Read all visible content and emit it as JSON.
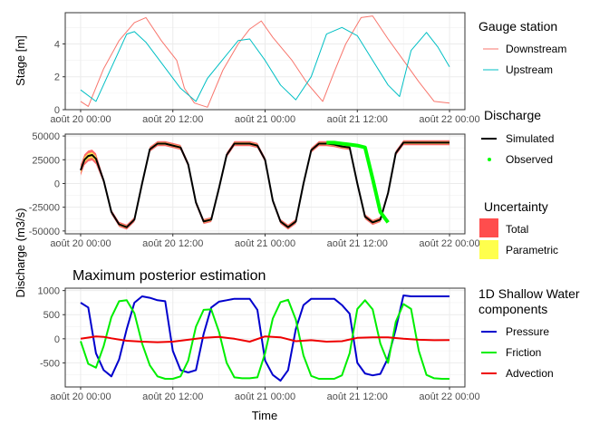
{
  "chart_data": [
    {
      "type": "line",
      "title": "",
      "xlabel": "",
      "ylabel": "Stage [m]",
      "x_ticks": [
        "août 20 00:00",
        "août 20 12:00",
        "août 21 00:00",
        "août 21 12:00",
        "août 22 00:00"
      ],
      "x_unit": "hours since août 20 00:00",
      "xlim": [
        -2,
        50
      ],
      "ylim": [
        0,
        5.9
      ],
      "y_ticks": [
        0,
        2,
        4
      ],
      "grid": true,
      "series": [
        {
          "name": "Downstream",
          "color": "#F8766D",
          "x": [
            0,
            1,
            3,
            5,
            7,
            8.5,
            10.5,
            12.5,
            13.5,
            14.8,
            16.5,
            18.5,
            20.5,
            22,
            23.5,
            25,
            27.5,
            29.5,
            31.5,
            33,
            34.5,
            36.5,
            38,
            40,
            42,
            44,
            46,
            48
          ],
          "y": [
            0.5,
            0.2,
            2.5,
            4.2,
            5.3,
            5.6,
            4.2,
            3.0,
            1.3,
            0.4,
            0.15,
            2.4,
            4.0,
            4.9,
            5.4,
            4.4,
            3.0,
            1.6,
            0.5,
            2.3,
            4.0,
            5.6,
            5.7,
            4.3,
            3.0,
            1.7,
            0.5,
            0.4
          ]
        },
        {
          "name": "Upstream",
          "color": "#00BFC4",
          "x": [
            0,
            2,
            6,
            7,
            8.5,
            13,
            15,
            16.5,
            20.5,
            22,
            24,
            26,
            28,
            30,
            32,
            34,
            36,
            38,
            40,
            41.5,
            43,
            45,
            46.5,
            48
          ],
          "y": [
            1.2,
            0.5,
            4.6,
            4.75,
            4.1,
            1.3,
            0.5,
            1.9,
            4.2,
            4.3,
            3.0,
            1.5,
            0.6,
            2.0,
            4.6,
            5.0,
            4.5,
            3.0,
            1.5,
            0.8,
            3.6,
            4.7,
            3.8,
            2.6
          ]
        }
      ]
    },
    {
      "type": "line",
      "title": "",
      "xlabel": "",
      "ylabel": "Discharge (m3/s)",
      "x_ticks": [
        "août 20 00:00",
        "août 20 12:00",
        "août 21 00:00",
        "août 21 12:00",
        "août 22 00:00"
      ],
      "x_unit": "hours since août 20 00:00",
      "xlim": [
        -2,
        50
      ],
      "ylim": [
        -53000,
        52000
      ],
      "y_ticks": [
        50000,
        25000,
        0,
        -25000,
        -50000
      ],
      "grid": true,
      "series": [
        {
          "name": "Simulated",
          "color": "#000000",
          "x": [
            0,
            0.5,
            1,
            1.5,
            2,
            3,
            4,
            5,
            6,
            7,
            8,
            9,
            10,
            11,
            12,
            13,
            14,
            15,
            16,
            17,
            18,
            19,
            20,
            21,
            22,
            23,
            24,
            25,
            26,
            27,
            28,
            29,
            30,
            31,
            32,
            33,
            34,
            35,
            36,
            37,
            38,
            39,
            40,
            41,
            42,
            43,
            44,
            45,
            46,
            47,
            48
          ],
          "y": [
            14000,
            25000,
            29000,
            30000,
            26000,
            3000,
            -30000,
            -43000,
            -46000,
            -38000,
            0,
            36000,
            42000,
            42000,
            40000,
            38000,
            20000,
            -20000,
            -40000,
            -38000,
            -5000,
            30000,
            42000,
            42000,
            42000,
            40000,
            25000,
            -18000,
            -40000,
            -46000,
            -40000,
            0,
            35000,
            42000,
            42000,
            41000,
            39000,
            38000,
            0,
            -35000,
            -41000,
            -38000,
            -10000,
            32000,
            43000,
            43000,
            43000,
            43000,
            43000,
            43000,
            43000
          ]
        },
        {
          "name": "Observed",
          "color": "#00FF00",
          "x": [
            32,
            33,
            34,
            35,
            36,
            37,
            38,
            39,
            40
          ],
          "y": [
            43000,
            43000,
            42000,
            41000,
            40000,
            38000,
            5000,
            -30000,
            -41000
          ]
        }
      ],
      "uncertainty": [
        {
          "name": "Total",
          "color": "#FF4D4D"
        },
        {
          "name": "Parametric",
          "color": "#FFFF4D"
        }
      ]
    },
    {
      "type": "line",
      "title": "Maximum posterior estimation",
      "xlabel": "Time",
      "ylabel": "",
      "x_ticks": [
        "août 20 00:00",
        "août 20 12:00",
        "août 21 00:00",
        "août 21 12:00",
        "août 22 00:00"
      ],
      "x_unit": "hours since août 20 00:00",
      "xlim": [
        -2,
        50
      ],
      "ylim": [
        -1000,
        1050
      ],
      "y_ticks": [
        1000,
        500,
        0,
        -500
      ],
      "grid": true,
      "series": [
        {
          "name": "Pressure",
          "color": "#0000CD",
          "x": [
            0,
            1,
            2,
            3,
            4,
            5,
            6,
            7,
            8,
            9,
            10,
            11,
            12,
            13,
            14,
            15,
            16,
            17,
            18,
            19,
            20,
            21,
            22,
            23,
            24,
            25,
            26,
            27,
            28,
            29,
            30,
            31,
            32,
            33,
            34,
            35,
            36,
            37,
            38,
            39,
            40,
            41,
            42,
            43,
            44,
            45,
            46,
            47,
            48
          ],
          "y": [
            750,
            650,
            -300,
            -650,
            -780,
            -430,
            200,
            750,
            880,
            850,
            800,
            780,
            -250,
            -650,
            -700,
            -650,
            100,
            650,
            770,
            800,
            830,
            830,
            830,
            600,
            -450,
            -750,
            -870,
            -650,
            200,
            700,
            830,
            830,
            830,
            830,
            700,
            520,
            -500,
            -720,
            -760,
            -730,
            -400,
            200,
            900,
            880,
            880,
            880,
            880,
            880,
            880
          ]
        },
        {
          "name": "Friction",
          "color": "#00EE00",
          "x": [
            0,
            1,
            2,
            3,
            4,
            5,
            6,
            7,
            8,
            9,
            10,
            11,
            12,
            13,
            14,
            15,
            16,
            17,
            18,
            19,
            20,
            21,
            22,
            23,
            24,
            25,
            26,
            27,
            28,
            29,
            30,
            31,
            32,
            33,
            34,
            35,
            36,
            37,
            38,
            39,
            40,
            41,
            42,
            43,
            44,
            45,
            46,
            47,
            48
          ],
          "y": [
            -50,
            -520,
            -600,
            -150,
            450,
            780,
            800,
            530,
            -100,
            -550,
            -780,
            -830,
            -830,
            -780,
            -450,
            250,
            600,
            610,
            150,
            -500,
            -800,
            -820,
            -820,
            -800,
            -300,
            420,
            760,
            810,
            400,
            -350,
            -770,
            -830,
            -830,
            -830,
            -760,
            -300,
            620,
            800,
            610,
            -100,
            -500,
            350,
            720,
            620,
            -250,
            -750,
            -820,
            -830,
            -830
          ]
        },
        {
          "name": "Advection",
          "color": "#EE0000",
          "x": [
            0,
            2,
            3,
            4,
            6,
            8,
            10,
            12,
            14,
            16,
            18,
            20,
            22,
            24,
            26,
            28,
            30,
            32,
            34,
            36,
            38,
            40,
            42,
            44,
            46,
            48
          ],
          "y": [
            0,
            50,
            40,
            10,
            -40,
            -60,
            -70,
            -60,
            -20,
            20,
            40,
            0,
            -60,
            50,
            30,
            -50,
            -30,
            -60,
            -50,
            20,
            30,
            30,
            0,
            -20,
            -30,
            -25
          ]
        }
      ]
    }
  ],
  "legend": {
    "gauge": {
      "title": "Gauge station",
      "items": [
        {
          "label": "Downstream",
          "color": "#F8766D"
        },
        {
          "label": "Upstream",
          "color": "#00BFC4"
        }
      ]
    },
    "discharge": {
      "title": "Discharge",
      "items": [
        {
          "label": "Simulated",
          "color": "#000000"
        },
        {
          "label": "Observed",
          "color": "#00FF00"
        }
      ]
    },
    "uncertainty": {
      "title": "Uncertainty",
      "items": [
        {
          "label": "Total",
          "color": "#FF4D4D"
        },
        {
          "label": "Parametric",
          "color": "#FFFF4D"
        }
      ]
    },
    "components": {
      "title_line1": "1D Shallow Water",
      "title_line2": "components",
      "items": [
        {
          "label": "Pressure",
          "color": "#0000CD"
        },
        {
          "label": "Friction",
          "color": "#00EE00"
        },
        {
          "label": "Advection",
          "color": "#EE0000"
        }
      ]
    }
  }
}
